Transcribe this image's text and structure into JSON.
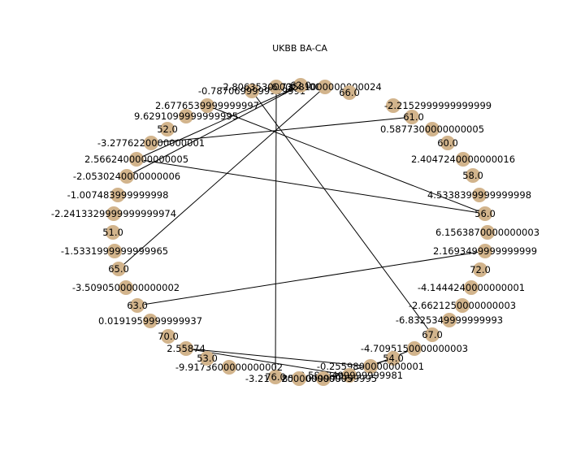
{
  "title": "UKBB BA-CA",
  "colors": {
    "node": "#d2b48c",
    "edge": "#000000",
    "background": "#ffffff"
  },
  "nodes": [
    "-0.7870699999999991",
    "-2.80635300000000014",
    "62.0",
    "-6.73581000000000024",
    "66.0",
    "-2.2152999999999999",
    "61.0",
    "0.5877300000000005",
    "60.0",
    "2.4047240000000016",
    "58.0",
    "4.5338399999999998",
    "56.0",
    "6.1563870000000003",
    "2.1693499999999999",
    "72.0",
    "-4.1444240000000001",
    "-2.6621250000000003",
    "-6.8325349999999993",
    "67.0",
    "-4.7095150000000003",
    "54.0",
    "-0.2559800000000001",
    "-3.5808499999999981",
    "-6.8583099999999995",
    "-3.2140200000000005",
    "76.0",
    "-9.9173600000000002",
    "53.0",
    "2.55874",
    "70.0",
    "0.0191959999999937",
    "63.0",
    "-3.5090500000000002",
    "65.0",
    "-1.5331999999999965",
    "51.0",
    "-2.2413329999999999974",
    "-1.007483999999998",
    "-2.0530240000000006",
    "2.5662400000000005",
    "-3.2776220000000001",
    "52.0",
    "9.6291099999999995",
    "2.6776539999999997"
  ]
}
